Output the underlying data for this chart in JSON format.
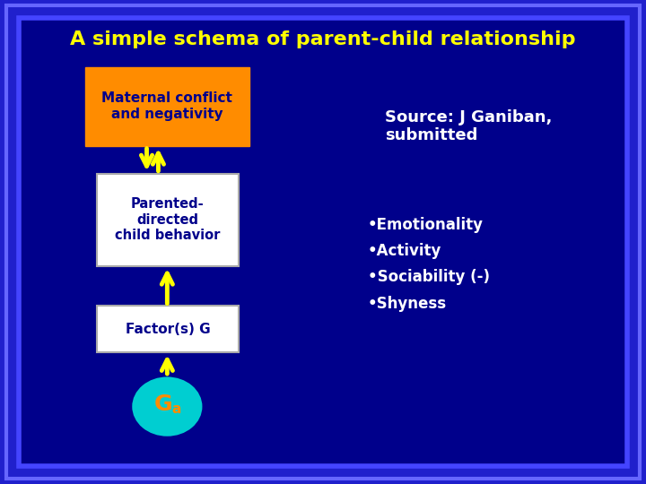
{
  "title": "A simple schema of parent-child relationship",
  "title_color": "#FFFF00",
  "title_fontsize": 16,
  "bg_outer": "#2020CC",
  "bg_inner": "#00008B",
  "border_color": "#4444FF",
  "box1_text": "Maternal conflict\nand negativity",
  "box1_bg": "#FF8C00",
  "box1_text_color": "#00008B",
  "box2_text": "Parented-\ndirected\nchild behavior",
  "box2_bg": "#FFFFFF",
  "box2_text_color": "#00008B",
  "box3_text": "Factor(s) G",
  "box3_bg": "#FFFFFF",
  "box3_text_color": "#00008B",
  "ellipse_color": "#00CED1",
  "ga_text_G": "G",
  "ga_text_a": "a",
  "ga_color": "#FF8C00",
  "arrow_color": "#FFFF00",
  "source_text": "Source: J Ganiban,\nsubmitted",
  "source_color": "#FFFFFF",
  "bullet_text": "•Emotionality\n•Activity\n•Sociability (-)\n•Shyness",
  "bullet_color": "#FFFFFF"
}
